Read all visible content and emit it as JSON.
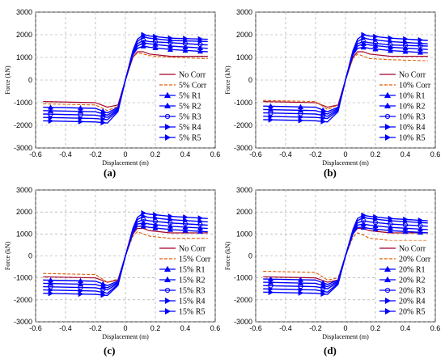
{
  "figure": {
    "y_axis_label": "Force (kN)",
    "x_axis_label": "Displacement (m)",
    "x_ticks": [
      "-0.6",
      "-0.4",
      "-0.2",
      "0",
      "0.2",
      "0.4",
      "0.6"
    ],
    "y_ticks": [
      "3000",
      "2000",
      "1000",
      "0",
      "-1000",
      "-2000",
      "-3000"
    ],
    "colors": {
      "no_corr": "#a5002a",
      "corr": "#e05a00",
      "repaired": "#0000ff",
      "grid": "#9a9a9a"
    }
  },
  "chart_data": [
    {
      "panel": "(a)",
      "type": "line",
      "xlim": [
        -0.6,
        0.6
      ],
      "ylim": [
        -3000,
        3000
      ],
      "grid": true,
      "legend": "right",
      "x": [
        -0.55,
        -0.2,
        -0.12,
        -0.05,
        0.0,
        0.05,
        0.08,
        0.12,
        0.16,
        0.3,
        0.55
      ],
      "series": [
        {
          "name": "No Corr",
          "marker": "none",
          "values": [
            -950,
            -1000,
            -1200,
            -1100,
            0,
            1000,
            1250,
            1250,
            1150,
            1050,
            1050
          ]
        },
        {
          "name": "5% Corr",
          "marker": "none",
          "values": [
            -1050,
            -1100,
            -1350,
            -1150,
            0,
            1000,
            1200,
            1150,
            1080,
            1000,
            950
          ]
        },
        {
          "name": "5% R1",
          "marker": "triangle-up",
          "values": [
            -1200,
            -1250,
            -1450,
            -1200,
            0,
            1100,
            1400,
            1500,
            1450,
            1350,
            1250
          ]
        },
        {
          "name": "5% R2",
          "marker": "triangle-up",
          "values": [
            -1350,
            -1400,
            -1550,
            -1250,
            0,
            1150,
            1500,
            1650,
            1600,
            1500,
            1400
          ]
        },
        {
          "name": "5% R3",
          "marker": "circle",
          "values": [
            -1500,
            -1550,
            -1650,
            -1300,
            0,
            1200,
            1600,
            1750,
            1700,
            1650,
            1550
          ]
        },
        {
          "name": "5% R4",
          "marker": "triangle-right",
          "values": [
            -1650,
            -1700,
            -1750,
            -1350,
            0,
            1250,
            1700,
            1900,
            1850,
            1750,
            1700
          ]
        },
        {
          "name": "5% R5",
          "marker": "triangle-right",
          "values": [
            -1800,
            -1850,
            -1900,
            -1400,
            0,
            1300,
            1800,
            2000,
            1950,
            1850,
            1800
          ]
        }
      ]
    },
    {
      "panel": "(b)",
      "type": "line",
      "xlim": [
        -0.6,
        0.6
      ],
      "ylim": [
        -3000,
        3000
      ],
      "grid": true,
      "legend": "right",
      "x": [
        -0.55,
        -0.2,
        -0.12,
        -0.05,
        0.0,
        0.05,
        0.08,
        0.12,
        0.16,
        0.3,
        0.55
      ],
      "series": [
        {
          "name": "No Corr",
          "marker": "none",
          "values": [
            -950,
            -1000,
            -1200,
            -1100,
            0,
            1000,
            1250,
            1250,
            1150,
            1050,
            1050
          ]
        },
        {
          "name": "10% Corr",
          "marker": "none",
          "values": [
            -900,
            -950,
            -1300,
            -1100,
            0,
            950,
            1150,
            1050,
            950,
            900,
            850
          ]
        },
        {
          "name": "10% R1",
          "marker": "triangle-up",
          "values": [
            -1150,
            -1200,
            -1400,
            -1200,
            0,
            1100,
            1400,
            1450,
            1400,
            1300,
            1200
          ]
        },
        {
          "name": "10% R2",
          "marker": "triangle-up",
          "values": [
            -1300,
            -1350,
            -1500,
            -1250,
            0,
            1150,
            1500,
            1600,
            1550,
            1450,
            1350
          ]
        },
        {
          "name": "10% R3",
          "marker": "circle",
          "values": [
            -1450,
            -1500,
            -1600,
            -1300,
            0,
            1200,
            1600,
            1700,
            1650,
            1550,
            1500
          ]
        },
        {
          "name": "10% R4",
          "marker": "triangle-right",
          "values": [
            -1600,
            -1650,
            -1700,
            -1350,
            0,
            1250,
            1700,
            1850,
            1800,
            1700,
            1600
          ]
        },
        {
          "name": "10% R5",
          "marker": "triangle-right",
          "values": [
            -1750,
            -1800,
            -1850,
            -1400,
            0,
            1300,
            1800,
            2000,
            1950,
            1850,
            1750
          ]
        }
      ]
    },
    {
      "panel": "(c)",
      "type": "line",
      "xlim": [
        -0.6,
        0.6
      ],
      "ylim": [
        -3000,
        3000
      ],
      "grid": true,
      "legend": "right",
      "x": [
        -0.55,
        -0.2,
        -0.12,
        -0.05,
        0.0,
        0.05,
        0.08,
        0.12,
        0.16,
        0.3,
        0.55
      ],
      "series": [
        {
          "name": "No Corr",
          "marker": "none",
          "values": [
            -950,
            -1000,
            -1200,
            -1100,
            0,
            1000,
            1250,
            1250,
            1150,
            1050,
            1050
          ]
        },
        {
          "name": "15% Corr",
          "marker": "none",
          "values": [
            -800,
            -850,
            -1200,
            -1050,
            0,
            900,
            1100,
            1000,
            900,
            800,
            800
          ]
        },
        {
          "name": "15% R1",
          "marker": "triangle-up",
          "values": [
            -1100,
            -1150,
            -1350,
            -1150,
            0,
            1050,
            1350,
            1350,
            1300,
            1200,
            1100
          ]
        },
        {
          "name": "15% R2",
          "marker": "triangle-up",
          "values": [
            -1250,
            -1300,
            -1450,
            -1200,
            0,
            1100,
            1450,
            1500,
            1450,
            1350,
            1250
          ]
        },
        {
          "name": "15% R3",
          "marker": "circle",
          "values": [
            -1400,
            -1450,
            -1550,
            -1250,
            0,
            1150,
            1550,
            1650,
            1600,
            1500,
            1400
          ]
        },
        {
          "name": "15% R4",
          "marker": "triangle-right",
          "values": [
            -1550,
            -1600,
            -1700,
            -1300,
            0,
            1200,
            1650,
            1800,
            1750,
            1650,
            1550
          ]
        },
        {
          "name": "15% R5",
          "marker": "triangle-right",
          "values": [
            -1700,
            -1750,
            -1800,
            -1350,
            0,
            1250,
            1750,
            1950,
            1900,
            1800,
            1700
          ]
        }
      ]
    },
    {
      "panel": "(d)",
      "type": "line",
      "xlim": [
        -0.6,
        0.6
      ],
      "ylim": [
        -3000,
        3000
      ],
      "grid": true,
      "legend": "right",
      "x": [
        -0.55,
        -0.2,
        -0.12,
        -0.05,
        0.0,
        0.05,
        0.08,
        0.12,
        0.16,
        0.3,
        0.55
      ],
      "series": [
        {
          "name": "No Corr",
          "marker": "none",
          "values": [
            -950,
            -1000,
            -1200,
            -1100,
            0,
            1000,
            1250,
            1250,
            1150,
            1050,
            1050
          ]
        },
        {
          "name": "20% Corr",
          "marker": "none",
          "values": [
            -700,
            -750,
            -1100,
            -1000,
            0,
            850,
            1050,
            950,
            800,
            700,
            700
          ]
        },
        {
          "name": "20% R1",
          "marker": "triangle-up",
          "values": [
            -1050,
            -1100,
            -1300,
            -1100,
            0,
            1000,
            1300,
            1300,
            1250,
            1150,
            1050
          ]
        },
        {
          "name": "20% R2",
          "marker": "triangle-up",
          "values": [
            -1200,
            -1250,
            -1400,
            -1150,
            0,
            1050,
            1400,
            1450,
            1400,
            1300,
            1200
          ]
        },
        {
          "name": "20% R3",
          "marker": "circle",
          "values": [
            -1350,
            -1400,
            -1500,
            -1200,
            0,
            1100,
            1500,
            1600,
            1550,
            1450,
            1350
          ]
        },
        {
          "name": "20% R4",
          "marker": "triangle-right",
          "values": [
            -1500,
            -1550,
            -1650,
            -1250,
            0,
            1150,
            1600,
            1750,
            1700,
            1600,
            1500
          ]
        },
        {
          "name": "20% R5",
          "marker": "triangle-right",
          "values": [
            -1650,
            -1700,
            -1750,
            -1300,
            0,
            1200,
            1700,
            1850,
            1800,
            1700,
            1600
          ]
        }
      ]
    }
  ]
}
